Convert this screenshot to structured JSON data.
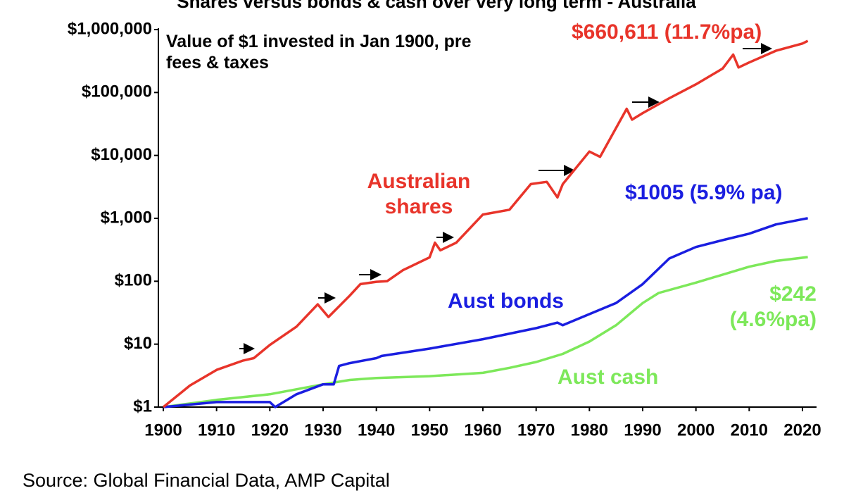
{
  "chart_data": {
    "type": "line",
    "title": "Shares versus bonds & cash over very long term - Australia",
    "annotations": {
      "note": "Value of $1 invested in Jan 1900, pre fees & taxes",
      "shares_end": "$660,611 (11.7%pa)",
      "bonds_end": "$1005 (5.9% pa)",
      "cash_end": "$242 (4.6%pa)"
    },
    "source": "Source: Global Financial Data, AMP Capital",
    "log_y": true,
    "xlim": [
      1900,
      2020
    ],
    "xticks": [
      1900,
      1910,
      1920,
      1930,
      1940,
      1950,
      1960,
      1970,
      1980,
      1990,
      2000,
      2010,
      2020
    ],
    "ylim": [
      1,
      1000000
    ],
    "yticks": [
      {
        "value": 1,
        "label": "$1"
      },
      {
        "value": 10,
        "label": "$10"
      },
      {
        "value": 100,
        "label": "$100"
      },
      {
        "value": 1000,
        "label": "$1,000"
      },
      {
        "value": 10000,
        "label": "$10,000"
      },
      {
        "value": 100000,
        "label": "$100,000"
      },
      {
        "value": 1000000,
        "label": "$1,000,000"
      }
    ],
    "series": [
      {
        "name": "Australian shares",
        "color": "#e8342a",
        "x": [
          1900,
          1905,
          1910,
          1915,
          1917,
          1920,
          1925,
          1929,
          1931,
          1935,
          1937,
          1940,
          1942,
          1945,
          1950,
          1951,
          1952,
          1955,
          1960,
          1965,
          1969,
          1972,
          1974,
          1975,
          1980,
          1982,
          1987,
          1988,
          1990,
          1995,
          2000,
          2005,
          2007,
          2008,
          2010,
          2015,
          2020,
          2021
        ],
        "values": [
          1,
          2.2,
          3.9,
          5.5,
          6,
          9.7,
          19,
          43,
          27,
          59,
          90,
          98,
          100,
          150,
          240,
          410,
          310,
          410,
          1150,
          1370,
          3500,
          3800,
          2150,
          3500,
          11500,
          9500,
          55000,
          37000,
          47000,
          81000,
          135000,
          240000,
          400000,
          250000,
          300000,
          460000,
          600000,
          660611
        ]
      },
      {
        "name": "Aust bonds",
        "color": "#1a1ee0",
        "x": [
          1900,
          1910,
          1920,
          1921,
          1925,
          1930,
          1932,
          1933,
          1935,
          1940,
          1941,
          1950,
          1960,
          1970,
          1974,
          1975,
          1980,
          1985,
          1990,
          1995,
          2000,
          2005,
          2010,
          2015,
          2021
        ],
        "values": [
          1,
          1.2,
          1.2,
          1.0,
          1.6,
          2.3,
          2.3,
          4.5,
          5,
          6,
          6.5,
          8.5,
          12,
          18,
          22,
          20,
          30,
          45,
          90,
          230,
          350,
          450,
          570,
          800,
          1005
        ]
      },
      {
        "name": "Aust cash",
        "color": "#7de85a",
        "x": [
          1900,
          1910,
          1920,
          1930,
          1935,
          1940,
          1950,
          1960,
          1965,
          1970,
          1975,
          1980,
          1985,
          1990,
          1993,
          2000,
          2010,
          2015,
          2021
        ],
        "values": [
          1,
          1.3,
          1.6,
          2.3,
          2.7,
          2.9,
          3.1,
          3.5,
          4.2,
          5.2,
          7,
          11,
          20,
          45,
          65,
          95,
          170,
          210,
          242
        ]
      }
    ]
  }
}
